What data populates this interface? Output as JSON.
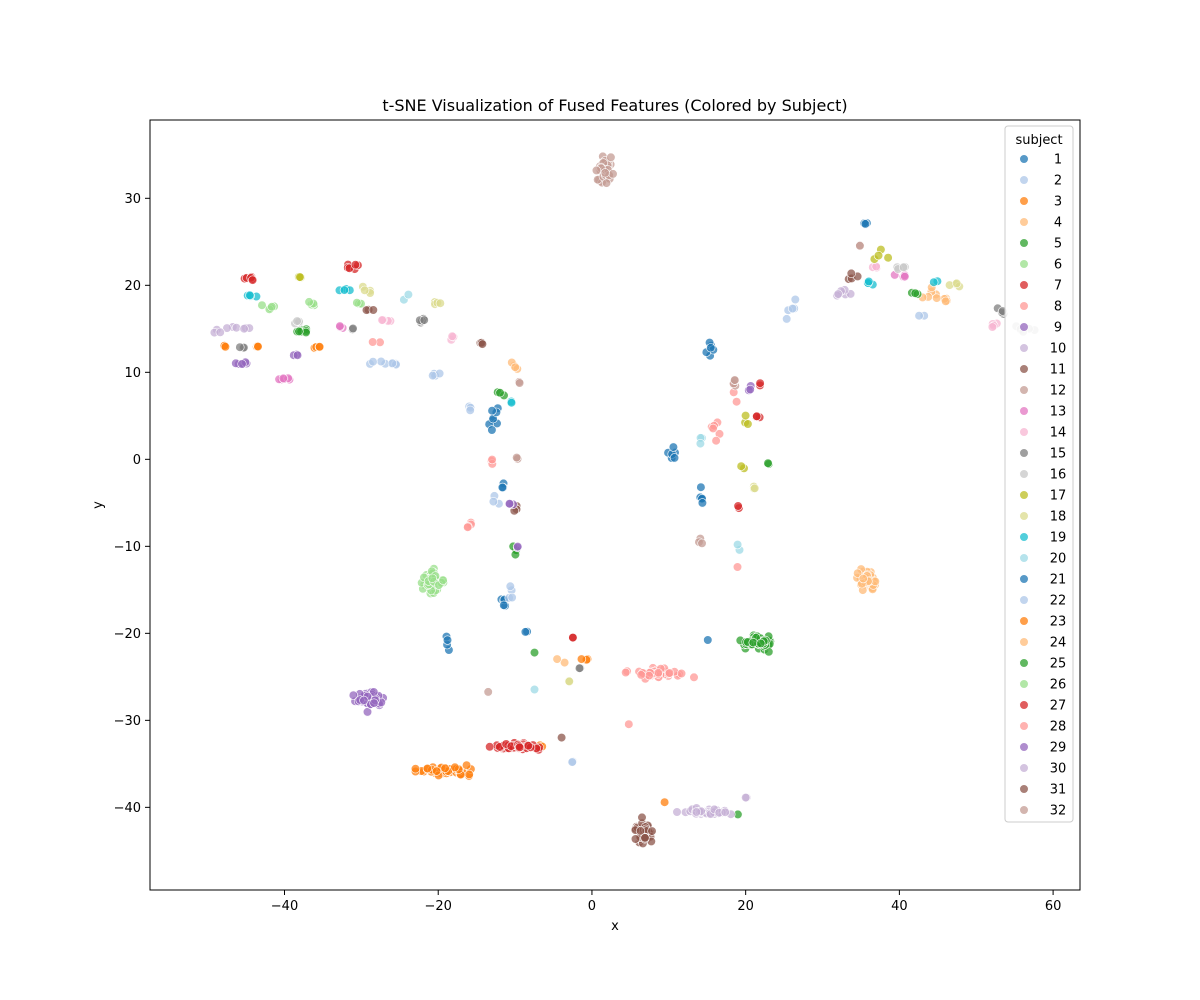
{
  "chart_data": {
    "type": "scatter",
    "title": "t-SNE Visualization of Fused Features (Colored by Subject)",
    "xlabel": "x",
    "ylabel": "y",
    "xlim": [
      -57.5,
      63.5
    ],
    "ylim": [
      -49.5,
      39
    ],
    "xticks": [
      -40,
      -20,
      0,
      20,
      40,
      60
    ],
    "yticks": [
      -40,
      -30,
      -20,
      -10,
      0,
      10,
      20,
      30
    ],
    "grid": false,
    "legend": {
      "title": "subject",
      "placement": "top-right"
    },
    "series": [
      {
        "name": "1",
        "color": "#1f77b4",
        "clusters": [
          [
            35.5,
            27.1,
            0.4,
            0.1,
            3
          ],
          [
            10.5,
            0.5,
            0.6,
            1.2,
            6
          ],
          [
            15.5,
            12.5,
            0.6,
            1.2,
            6
          ],
          [
            14.2,
            -4.5,
            0.2,
            1.5,
            6
          ]
        ]
      },
      {
        "name": "2",
        "color": "#aec7e8",
        "clusters": [
          [
            -27,
            11,
            2.5,
            0.2,
            8
          ],
          [
            -20,
            10,
            1.0,
            0.4,
            4
          ],
          [
            26,
            17,
            1.0,
            1.5,
            5
          ],
          [
            -16,
            6,
            0.5,
            0.5,
            3
          ]
        ]
      },
      {
        "name": "3",
        "color": "#ff7f0e",
        "clusters": [
          [
            -43.5,
            13,
            0.6,
            0.1,
            3
          ],
          [
            -48,
            13,
            0.6,
            0.1,
            3
          ],
          [
            -36,
            12.8,
            1.0,
            0.3,
            4
          ],
          [
            -1,
            -23,
            0.6,
            0.2,
            3
          ]
        ]
      },
      {
        "name": "4",
        "color": "#ffbb78",
        "clusters": [
          [
            44,
            19,
            2.0,
            0.6,
            6
          ],
          [
            -10,
            11,
            0.6,
            0.8,
            4
          ],
          [
            -4,
            -23,
            0.5,
            0.3,
            2
          ]
        ]
      },
      {
        "name": "5",
        "color": "#2ca02c",
        "clusters": [
          [
            -37.5,
            14.8,
            1.5,
            0.2,
            8
          ],
          [
            -12,
            7.5,
            0.4,
            0.3,
            3
          ],
          [
            -10,
            -10.5,
            0.4,
            1.0,
            4
          ],
          [
            42,
            19,
            1.0,
            0.3,
            3
          ]
        ]
      },
      {
        "name": "6",
        "color": "#98df8a",
        "clusters": [
          [
            -42,
            17.5,
            1.5,
            0.2,
            6
          ],
          [
            -36.5,
            17.8,
            1.2,
            0.3,
            4
          ],
          [
            -30,
            18,
            1.0,
            0.3,
            3
          ]
        ]
      },
      {
        "name": "7",
        "color": "#d62728",
        "clusters": [
          [
            -44.5,
            20.8,
            1.2,
            0.4,
            6
          ],
          [
            -31,
            22.2,
            0.8,
            0.5,
            6
          ],
          [
            21.5,
            5,
            0.3,
            0.5,
            3
          ],
          [
            22,
            8.5,
            0.3,
            0.4,
            2
          ]
        ]
      },
      {
        "name": "8",
        "color": "#ff9896",
        "clusters": [
          [
            16,
            3,
            0.8,
            1.5,
            6
          ],
          [
            18.5,
            7.5,
            0.5,
            0.8,
            3
          ],
          [
            -13,
            -0.2,
            0.2,
            0.6,
            3
          ],
          [
            19,
            -12.3,
            0.1,
            0.1,
            1
          ],
          [
            -28,
            13.5,
            0.5,
            0.3,
            2
          ]
        ]
      },
      {
        "name": "9",
        "color": "#9467bd",
        "clusters": [
          [
            -45.5,
            11,
            1.0,
            0.4,
            6
          ],
          [
            -38.5,
            12,
            0.5,
            0.3,
            3
          ],
          [
            -9.5,
            -10,
            0.3,
            0.3,
            2
          ],
          [
            20.5,
            8,
            0.3,
            0.4,
            3
          ]
        ]
      },
      {
        "name": "10",
        "color": "#c5b0d5",
        "clusters": [
          [
            -46,
            15.2,
            2.5,
            0.2,
            6
          ],
          [
            -49,
            14.5,
            0.8,
            0.4,
            3
          ],
          [
            33,
            19,
            2.0,
            0.4,
            6
          ]
        ]
      },
      {
        "name": "11",
        "color": "#8c564b",
        "clusters": [
          [
            -14.5,
            13.5,
            0.5,
            0.5,
            3
          ],
          [
            -29,
            17.2,
            0.6,
            0.2,
            3
          ],
          [
            -10,
            -5.5,
            0.4,
            0.5,
            3
          ],
          [
            34,
            21,
            1.0,
            0.5,
            4
          ]
        ]
      },
      {
        "name": "12",
        "color": "#c49c94",
        "clusters": [
          [
            1.5,
            33.0,
            1.2,
            1.4,
            40
          ],
          [
            18.5,
            8.5,
            0.3,
            0.8,
            4
          ],
          [
            14.2,
            -9.5,
            0.3,
            0.4,
            3
          ],
          [
            -9.8,
            0,
            0.2,
            0.6,
            3
          ]
        ]
      },
      {
        "name": "13",
        "color": "#e377c2",
        "clusters": [
          [
            -40,
            9.2,
            1.0,
            0.2,
            6
          ],
          [
            -33,
            15.2,
            0.6,
            0.2,
            3
          ],
          [
            40,
            21,
            1.0,
            0.4,
            4
          ]
        ]
      },
      {
        "name": "14",
        "color": "#f7b6d2",
        "clusters": [
          [
            -26.5,
            16,
            1.0,
            0.2,
            4
          ],
          [
            -18,
            14,
            0.6,
            0.4,
            3
          ],
          [
            52,
            15.5,
            1.0,
            0.3,
            4
          ],
          [
            37,
            22,
            0.8,
            0.3,
            3
          ]
        ]
      },
      {
        "name": "15",
        "color": "#7f7f7f",
        "clusters": [
          [
            -22.5,
            16,
            1.0,
            0.3,
            5
          ],
          [
            -45.5,
            13,
            0.6,
            0.2,
            3
          ],
          [
            -31,
            15,
            0.5,
            0.3,
            2
          ],
          [
            53,
            17,
            0.8,
            0.4,
            4
          ],
          [
            -1.5,
            -24,
            0.3,
            0.1,
            2
          ]
        ]
      },
      {
        "name": "16",
        "color": "#c7c7c7",
        "clusters": [
          [
            -38,
            15.8,
            1.0,
            0.2,
            4
          ],
          [
            56,
            15,
            1.5,
            0.4,
            6
          ],
          [
            40,
            22,
            1.0,
            0.2,
            4
          ]
        ]
      },
      {
        "name": "17",
        "color": "#bcbd22",
        "clusters": [
          [
            -38,
            21,
            0.5,
            0.3,
            3
          ],
          [
            20,
            4.5,
            0.3,
            1.0,
            3
          ],
          [
            19.5,
            -1,
            0.4,
            0.3,
            2
          ],
          [
            37.5,
            23.5,
            0.8,
            0.5,
            4
          ]
        ]
      },
      {
        "name": "18",
        "color": "#dbdb8d",
        "clusters": [
          [
            -29.5,
            19.5,
            0.8,
            0.3,
            4
          ],
          [
            -20.5,
            18,
            1.0,
            0.2,
            4
          ],
          [
            21,
            -3,
            0.3,
            0.8,
            3
          ],
          [
            47,
            20,
            1.0,
            0.3,
            4
          ],
          [
            -3,
            -25.5,
            0.4,
            0.1,
            2
          ]
        ]
      },
      {
        "name": "19",
        "color": "#17becf",
        "clusters": [
          [
            -44,
            18.8,
            1.2,
            0.1,
            4
          ],
          [
            -32,
            19.5,
            1.0,
            0.2,
            4
          ],
          [
            -10.5,
            6.5,
            0.3,
            0.4,
            2
          ],
          [
            36.5,
            20.3,
            1.0,
            0.2,
            4
          ],
          [
            45,
            20.5,
            0.6,
            0.2,
            2
          ]
        ]
      },
      {
        "name": "20",
        "color": "#9edae5",
        "clusters": [
          [
            -24,
            18.5,
            0.5,
            0.4,
            2
          ],
          [
            14.5,
            1.5,
            0.4,
            1.2,
            3
          ],
          [
            19,
            -10,
            0.2,
            0.4,
            2
          ],
          [
            -7.5,
            -26.5,
            0.1,
            0.1,
            1
          ]
        ]
      },
      {
        "name": "21",
        "color": "#1f77b4",
        "clusters": [
          [
            -13,
            5,
            0.8,
            1.5,
            8
          ],
          [
            -11.5,
            -3,
            0.2,
            0.6,
            3
          ],
          [
            -18.8,
            -21,
            0.2,
            0.8,
            4
          ],
          [
            -11.5,
            -16.5,
            0.3,
            1.0,
            5
          ],
          [
            -8.5,
            -19.8,
            0.5,
            0.1,
            2
          ],
          [
            15,
            -20.7,
            0.1,
            0.1,
            1
          ]
        ]
      },
      {
        "name": "22",
        "color": "#aec7e8",
        "clusters": [
          [
            -12.5,
            -4.5,
            0.5,
            0.8,
            3
          ],
          [
            -10.5,
            -15,
            0.4,
            1.0,
            4
          ],
          [
            -2.5,
            -34.8,
            0.1,
            0.1,
            2
          ],
          [
            43,
            16.5,
            0.4,
            0.1,
            2
          ]
        ]
      },
      {
        "name": "23",
        "color": "#ff7f0e",
        "clusters": [
          [
            -19.5,
            -35.8,
            4.5,
            0.5,
            45
          ],
          [
            -6.5,
            -33,
            0.3,
            0.2,
            2
          ],
          [
            9.5,
            -39.4,
            0.2,
            0.1,
            1
          ]
        ]
      },
      {
        "name": "24",
        "color": "#ffbb78",
        "clusters": [
          [
            35.8,
            -13.8,
            1.5,
            1.0,
            45
          ],
          [
            46,
            18.5,
            1.0,
            0.5,
            4
          ]
        ]
      },
      {
        "name": "25",
        "color": "#2ca02c",
        "clusters": [
          [
            21.5,
            -21.0,
            2.0,
            0.7,
            55
          ],
          [
            -7.5,
            -22.3,
            0.1,
            0.1,
            1
          ],
          [
            19,
            -40.8,
            0.1,
            0.1,
            1
          ],
          [
            23,
            -0.5,
            0.2,
            0.2,
            2
          ]
        ]
      },
      {
        "name": "26",
        "color": "#98df8a",
        "clusters": [
          [
            -20.5,
            -14.0,
            1.2,
            1.2,
            40
          ]
        ]
      },
      {
        "name": "27",
        "color": "#d62728",
        "clusters": [
          [
            -9.5,
            -33.0,
            2.8,
            0.4,
            50
          ],
          [
            -2.5,
            -20.5,
            0.2,
            0.1,
            2
          ],
          [
            19,
            -5.5,
            0.3,
            0.3,
            2
          ]
        ]
      },
      {
        "name": "28",
        "color": "#ff9896",
        "clusters": [
          [
            8.5,
            -24.7,
            3.0,
            0.5,
            45
          ],
          [
            -16,
            -7.5,
            0.8,
            0.5,
            4
          ],
          [
            4.8,
            -30.5,
            0.1,
            0.1,
            1
          ]
        ]
      },
      {
        "name": "29",
        "color": "#9467bd",
        "clusters": [
          [
            -29.0,
            -27.5,
            1.8,
            1.0,
            45
          ],
          [
            -10.5,
            -5,
            0.3,
            0.5,
            3
          ]
        ]
      },
      {
        "name": "30",
        "color": "#c5b0d5",
        "clusters": [
          [
            14.5,
            -40.5,
            3.0,
            0.4,
            35
          ],
          [
            20,
            -38.8,
            0.2,
            0.2,
            2
          ]
        ]
      },
      {
        "name": "31",
        "color": "#8c564b",
        "clusters": [
          [
            6.8,
            -43.0,
            1.0,
            1.2,
            45
          ],
          [
            -4,
            -32,
            0.1,
            0.1,
            1
          ]
        ]
      },
      {
        "name": "32",
        "color": "#c49c94",
        "clusters": [
          [
            -13.5,
            -26.7,
            0.1,
            0.1,
            1
          ],
          [
            -9.5,
            9,
            0.3,
            0.3,
            2
          ],
          [
            35,
            24.6,
            0.3,
            0.1,
            2
          ]
        ]
      }
    ]
  }
}
